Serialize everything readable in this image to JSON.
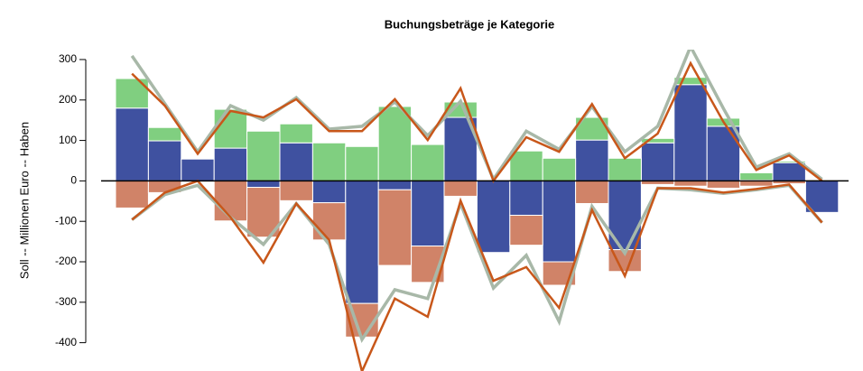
{
  "chart_data": {
    "type": "bar",
    "title": "Buchungsbeträge je Kategorie",
    "y_label": "Soll -- Millionen Euro -- Haben",
    "ylim": [
      -470,
      320
    ],
    "yticks": [
      300,
      200,
      100,
      0,
      -100,
      -200,
      -300,
      -400
    ],
    "series": [
      {
        "type": "bar",
        "color": "#3f51a0",
        "values": [
          180,
          99,
          54,
          81,
          -16,
          94,
          -54,
          -303,
          -22,
          -161,
          157,
          -177,
          -85,
          -200,
          101,
          -170,
          94,
          238,
          135,
          2,
          45,
          -78
        ]
      },
      {
        "type": "bar",
        "color": "#80cf80",
        "values": [
          73,
          33,
          0,
          96,
          123,
          47,
          94,
          85,
          184,
          90,
          38,
          0,
          74,
          56,
          56,
          56,
          11,
          18,
          20,
          18,
          4,
          0
        ]
      },
      {
        "type": "bar",
        "color": "#d08368",
        "values": [
          -67,
          -29,
          0,
          -99,
          -123,
          -49,
          -92,
          -83,
          -187,
          -90,
          -38,
          0,
          -74,
          -58,
          -56,
          -54,
          -9,
          -13,
          -18,
          -13,
          -7,
          0
        ]
      },
      {
        "type": "line",
        "color": "#a8b8a8",
        "values": [
          309,
          191,
          72,
          186,
          150,
          206,
          128,
          135,
          195,
          112,
          197,
          4,
          123,
          78,
          184,
          72,
          135,
          332,
          179,
          34,
          67,
          4
        ]
      },
      {
        "type": "line",
        "color": "#a8b8a8",
        "values": [
          -96,
          -34,
          -11,
          -90,
          -157,
          -56,
          -157,
          -392,
          -269,
          -291,
          -56,
          -265,
          -184,
          -348,
          -63,
          -179,
          -18,
          -22,
          -31,
          -22,
          -11,
          -103
        ]
      },
      {
        "type": "line",
        "color": "#c8571a",
        "values": [
          265,
          186,
          67,
          173,
          157,
          202,
          123,
          123,
          202,
          101,
          229,
          0,
          108,
          72,
          190,
          56,
          117,
          291,
          146,
          27,
          63,
          0
        ]
      },
      {
        "type": "line",
        "color": "#c8571a",
        "values": [
          -96,
          -29,
          0,
          -90,
          -202,
          -56,
          -146,
          -471,
          -291,
          -336,
          -49,
          -247,
          -213,
          -314,
          -72,
          -235,
          -18,
          -18,
          -29,
          -20,
          -9,
          -103
        ]
      }
    ]
  }
}
